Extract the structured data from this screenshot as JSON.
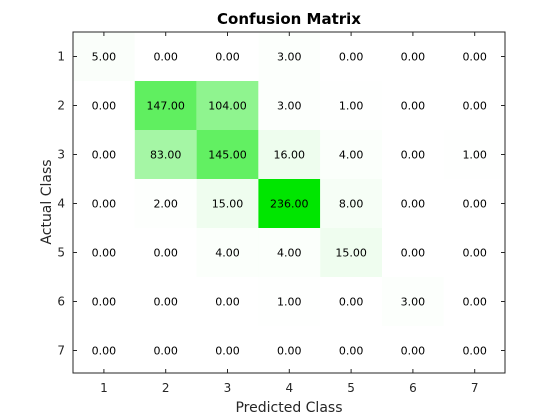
{
  "chart_data": {
    "type": "heatmap",
    "title": "Confusion Matrix",
    "xlabel": "Predicted Class",
    "ylabel": "Actual Class",
    "x_categories": [
      "1",
      "2",
      "3",
      "4",
      "5",
      "6",
      "7"
    ],
    "y_categories": [
      "1",
      "2",
      "3",
      "4",
      "5",
      "6",
      "7"
    ],
    "values": [
      [
        5,
        0,
        0,
        3,
        0,
        0,
        0
      ],
      [
        0,
        147,
        104,
        3,
        1,
        0,
        0
      ],
      [
        0,
        83,
        145,
        16,
        4,
        0,
        1
      ],
      [
        0,
        2,
        15,
        236,
        8,
        0,
        0
      ],
      [
        0,
        0,
        4,
        4,
        15,
        0,
        0
      ],
      [
        0,
        0,
        0,
        1,
        0,
        3,
        0
      ],
      [
        0,
        0,
        0,
        0,
        0,
        0,
        0
      ]
    ],
    "value_format": "2 decimals",
    "colormap": {
      "low": "#ffffff",
      "high": "#00e600"
    },
    "grid": false
  }
}
